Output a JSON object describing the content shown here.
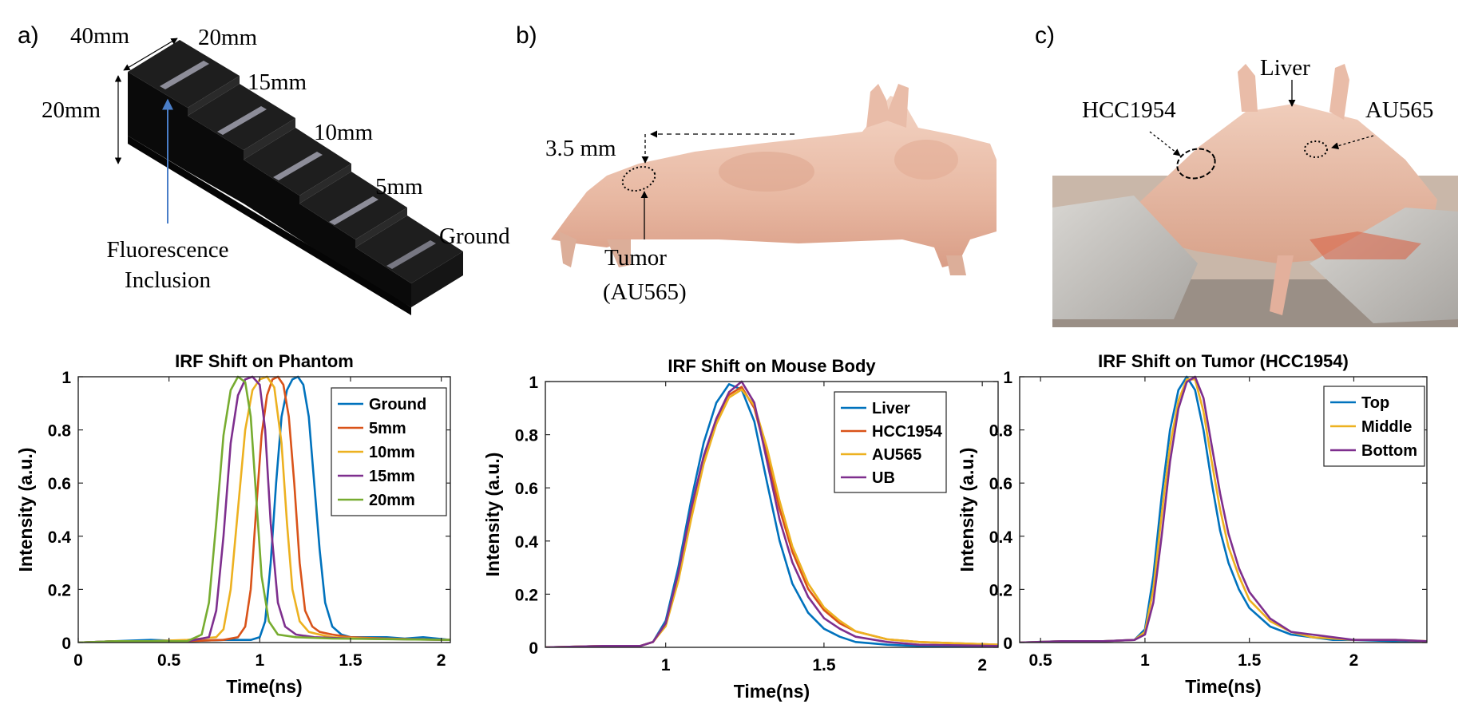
{
  "panels": {
    "a": {
      "letter": "a)",
      "dims": [
        "40mm",
        "20mm",
        "20mm",
        "15mm",
        "10mm",
        "5mm",
        "Ground"
      ],
      "inclusion_label": [
        "Fluorescence",
        "Inclusion"
      ]
    },
    "b": {
      "letter": "b)",
      "depth_label": "3.5 mm",
      "tumor_label": [
        "Tumor",
        "(AU565)"
      ]
    },
    "c": {
      "letter": "c)",
      "labels": [
        "Liver",
        "HCC1954",
        "AU565"
      ]
    }
  },
  "colors": {
    "blue": "#0072BD",
    "orange": "#D95319",
    "yellow": "#EDB120",
    "purple": "#7E2F8E",
    "green": "#77AC30"
  },
  "chart_data": [
    {
      "type": "line",
      "title": "IRF Shift on Phantom",
      "xlabel": "Time(ns)",
      "ylabel": "Intensity (a.u.)",
      "xlim": [
        0,
        2.05
      ],
      "ylim": [
        0,
        1
      ],
      "xticks": [
        0,
        0.5,
        1,
        1.5,
        2
      ],
      "xtick_labels": [
        "0",
        "0.5",
        "1",
        "1.5",
        "2"
      ],
      "yticks": [
        0,
        0.2,
        0.4,
        0.6,
        0.8,
        1
      ],
      "ytick_labels": [
        "0",
        "0.2",
        "0.4",
        "0.6",
        "0.8",
        "1"
      ],
      "legend": "top-right",
      "grid": false,
      "series": [
        {
          "name": "Ground",
          "color": "#0072BD",
          "x": [
            0,
            0.2,
            0.4,
            0.6,
            0.8,
            0.95,
            1.0,
            1.03,
            1.06,
            1.09,
            1.12,
            1.15,
            1.18,
            1.21,
            1.24,
            1.27,
            1.3,
            1.33,
            1.36,
            1.4,
            1.45,
            1.5,
            1.6,
            1.7,
            1.8,
            1.9,
            2.05
          ],
          "y": [
            0,
            0.005,
            0.01,
            0.005,
            0.01,
            0.01,
            0.02,
            0.08,
            0.3,
            0.6,
            0.85,
            0.95,
            0.99,
            1,
            0.97,
            0.85,
            0.6,
            0.35,
            0.15,
            0.06,
            0.03,
            0.02,
            0.02,
            0.02,
            0.015,
            0.02,
            0.01
          ]
        },
        {
          "name": "5mm",
          "color": "#D95319",
          "x": [
            0,
            0.2,
            0.4,
            0.6,
            0.8,
            0.88,
            0.92,
            0.95,
            0.98,
            1.01,
            1.04,
            1.07,
            1.1,
            1.13,
            1.16,
            1.19,
            1.22,
            1.25,
            1.29,
            1.33,
            1.4,
            1.5,
            1.7,
            2.05
          ],
          "y": [
            0,
            0.005,
            0.005,
            0.005,
            0.01,
            0.02,
            0.06,
            0.2,
            0.5,
            0.78,
            0.93,
            0.99,
            1,
            0.97,
            0.85,
            0.6,
            0.3,
            0.12,
            0.06,
            0.04,
            0.03,
            0.02,
            0.015,
            0.01
          ]
        },
        {
          "name": "10mm",
          "color": "#EDB120",
          "x": [
            0,
            0.2,
            0.4,
            0.6,
            0.76,
            0.8,
            0.84,
            0.88,
            0.92,
            0.96,
            1.0,
            1.04,
            1.08,
            1.12,
            1.15,
            1.18,
            1.22,
            1.27,
            1.33,
            1.4,
            1.6,
            2.05
          ],
          "y": [
            0,
            0.005,
            0.005,
            0.01,
            0.02,
            0.05,
            0.2,
            0.5,
            0.8,
            0.95,
            0.99,
            1,
            0.96,
            0.75,
            0.45,
            0.2,
            0.08,
            0.04,
            0.03,
            0.02,
            0.015,
            0.01
          ]
        },
        {
          "name": "15mm",
          "color": "#7E2F8E",
          "x": [
            0,
            0.2,
            0.4,
            0.6,
            0.72,
            0.76,
            0.8,
            0.84,
            0.88,
            0.92,
            0.96,
            1.0,
            1.03,
            1.06,
            1.1,
            1.14,
            1.2,
            1.3,
            1.5,
            2.05
          ],
          "y": [
            0,
            0.005,
            0.005,
            0.005,
            0.02,
            0.12,
            0.4,
            0.75,
            0.93,
            0.99,
            1,
            0.97,
            0.8,
            0.45,
            0.15,
            0.06,
            0.03,
            0.02,
            0.015,
            0.01
          ]
        },
        {
          "name": "20mm",
          "color": "#77AC30",
          "x": [
            0,
            0.2,
            0.4,
            0.6,
            0.68,
            0.72,
            0.76,
            0.8,
            0.84,
            0.88,
            0.92,
            0.95,
            0.98,
            1.01,
            1.05,
            1.1,
            1.2,
            1.4,
            2.05
          ],
          "y": [
            0,
            0.005,
            0.005,
            0.005,
            0.03,
            0.15,
            0.45,
            0.78,
            0.95,
            1,
            0.98,
            0.85,
            0.55,
            0.25,
            0.08,
            0.03,
            0.02,
            0.015,
            0.01
          ]
        }
      ]
    },
    {
      "type": "line",
      "title": "IRF Shift on Mouse Body",
      "xlabel": "Time(ns)",
      "ylabel": "Intensity (a.u.)",
      "xlim": [
        0.62,
        2.05
      ],
      "ylim": [
        0,
        1
      ],
      "xticks": [
        1,
        1.5,
        2
      ],
      "xtick_labels": [
        "1",
        "1.5",
        "2"
      ],
      "yticks": [
        0,
        0.2,
        0.4,
        0.6,
        0.8,
        1
      ],
      "ytick_labels": [
        "0",
        "0.2",
        "0.4",
        "0.6",
        "0.8",
        "1"
      ],
      "legend": "top-right",
      "grid": false,
      "series": [
        {
          "name": "Liver",
          "color": "#0072BD",
          "x": [
            0.62,
            0.8,
            0.92,
            0.96,
            1.0,
            1.04,
            1.08,
            1.12,
            1.16,
            1.2,
            1.24,
            1.28,
            1.32,
            1.36,
            1.4,
            1.45,
            1.5,
            1.55,
            1.6,
            1.7,
            1.8,
            2.05
          ],
          "y": [
            0,
            0.005,
            0.005,
            0.02,
            0.1,
            0.3,
            0.55,
            0.77,
            0.92,
            0.99,
            0.97,
            0.85,
            0.62,
            0.4,
            0.24,
            0.13,
            0.07,
            0.04,
            0.02,
            0.01,
            0.005,
            0.005
          ]
        },
        {
          "name": "HCC1954",
          "color": "#D95319",
          "x": [
            0.62,
            0.8,
            0.92,
            0.96,
            1.0,
            1.04,
            1.08,
            1.12,
            1.16,
            1.2,
            1.24,
            1.28,
            1.32,
            1.36,
            1.4,
            1.45,
            1.5,
            1.55,
            1.6,
            1.7,
            1.8,
            2.05
          ],
          "y": [
            0,
            0.005,
            0.005,
            0.02,
            0.09,
            0.27,
            0.5,
            0.71,
            0.85,
            0.95,
            0.98,
            0.9,
            0.72,
            0.52,
            0.36,
            0.22,
            0.14,
            0.09,
            0.06,
            0.03,
            0.02,
            0.01
          ]
        },
        {
          "name": "AU565",
          "color": "#EDB120",
          "x": [
            0.62,
            0.8,
            0.92,
            0.96,
            1.0,
            1.04,
            1.08,
            1.12,
            1.16,
            1.2,
            1.24,
            1.28,
            1.32,
            1.36,
            1.4,
            1.45,
            1.5,
            1.55,
            1.6,
            1.7,
            1.8,
            2.05
          ],
          "y": [
            0,
            0.005,
            0.005,
            0.02,
            0.08,
            0.25,
            0.48,
            0.69,
            0.84,
            0.94,
            0.97,
            0.91,
            0.75,
            0.55,
            0.38,
            0.24,
            0.15,
            0.1,
            0.06,
            0.03,
            0.02,
            0.01
          ]
        },
        {
          "name": "UB",
          "color": "#7E2F8E",
          "x": [
            0.62,
            0.8,
            0.92,
            0.96,
            1.0,
            1.04,
            1.08,
            1.12,
            1.16,
            1.2,
            1.24,
            1.28,
            1.32,
            1.36,
            1.4,
            1.45,
            1.5,
            1.55,
            1.6,
            1.7,
            1.8,
            2.05
          ],
          "y": [
            0,
            0.005,
            0.005,
            0.02,
            0.09,
            0.28,
            0.52,
            0.72,
            0.86,
            0.96,
            1.0,
            0.92,
            0.7,
            0.48,
            0.32,
            0.19,
            0.11,
            0.07,
            0.04,
            0.02,
            0.01,
            0.005
          ]
        }
      ]
    },
    {
      "type": "line",
      "title": "IRF Shift on Tumor (HCC1954)",
      "xlabel": "Time(ns)",
      "ylabel": "Intensity (a.u.)",
      "xlim": [
        0.4,
        2.35
      ],
      "ylim": [
        0,
        1
      ],
      "xticks": [
        0.5,
        1,
        1.5,
        2
      ],
      "xtick_labels": [
        "0.5",
        "1",
        "1.5",
        "2"
      ],
      "yticks": [
        0,
        0.2,
        0.4,
        0.6,
        0.8,
        1
      ],
      "ytick_labels": [
        "0",
        "0.2",
        "0.4",
        "0.6",
        "0.8",
        "1"
      ],
      "legend": "top-right",
      "grid": false,
      "series": [
        {
          "name": "Top",
          "color": "#0072BD",
          "x": [
            0.4,
            0.6,
            0.8,
            0.95,
            1.0,
            1.04,
            1.08,
            1.12,
            1.16,
            1.2,
            1.24,
            1.28,
            1.32,
            1.36,
            1.4,
            1.45,
            1.5,
            1.6,
            1.7,
            1.8,
            1.9,
            2.0,
            2.2,
            2.35
          ],
          "y": [
            0,
            0.005,
            0.005,
            0.01,
            0.05,
            0.25,
            0.55,
            0.8,
            0.95,
            1,
            0.95,
            0.8,
            0.6,
            0.42,
            0.3,
            0.2,
            0.13,
            0.06,
            0.03,
            0.02,
            0.01,
            0.01,
            0.005,
            0.005
          ]
        },
        {
          "name": "Middle",
          "color": "#EDB120",
          "x": [
            0.4,
            0.6,
            0.8,
            0.95,
            1.0,
            1.04,
            1.08,
            1.12,
            1.16,
            1.2,
            1.24,
            1.28,
            1.32,
            1.36,
            1.4,
            1.45,
            1.5,
            1.6,
            1.7,
            1.8,
            1.9,
            2.0,
            2.2,
            2.35
          ],
          "y": [
            0,
            0.005,
            0.005,
            0.01,
            0.04,
            0.2,
            0.48,
            0.74,
            0.91,
            0.99,
            0.99,
            0.87,
            0.68,
            0.5,
            0.36,
            0.25,
            0.16,
            0.08,
            0.04,
            0.02,
            0.015,
            0.01,
            0.01,
            0.005
          ]
        },
        {
          "name": "Bottom",
          "color": "#7E2F8E",
          "x": [
            0.4,
            0.6,
            0.8,
            0.95,
            1.0,
            1.04,
            1.08,
            1.12,
            1.16,
            1.2,
            1.24,
            1.28,
            1.32,
            1.36,
            1.4,
            1.45,
            1.5,
            1.6,
            1.7,
            1.8,
            1.9,
            2.0,
            2.2,
            2.35
          ],
          "y": [
            0,
            0.005,
            0.005,
            0.01,
            0.03,
            0.15,
            0.4,
            0.68,
            0.88,
            0.98,
            1,
            0.92,
            0.74,
            0.56,
            0.41,
            0.28,
            0.19,
            0.09,
            0.04,
            0.03,
            0.02,
            0.01,
            0.01,
            0.005
          ]
        }
      ]
    }
  ]
}
